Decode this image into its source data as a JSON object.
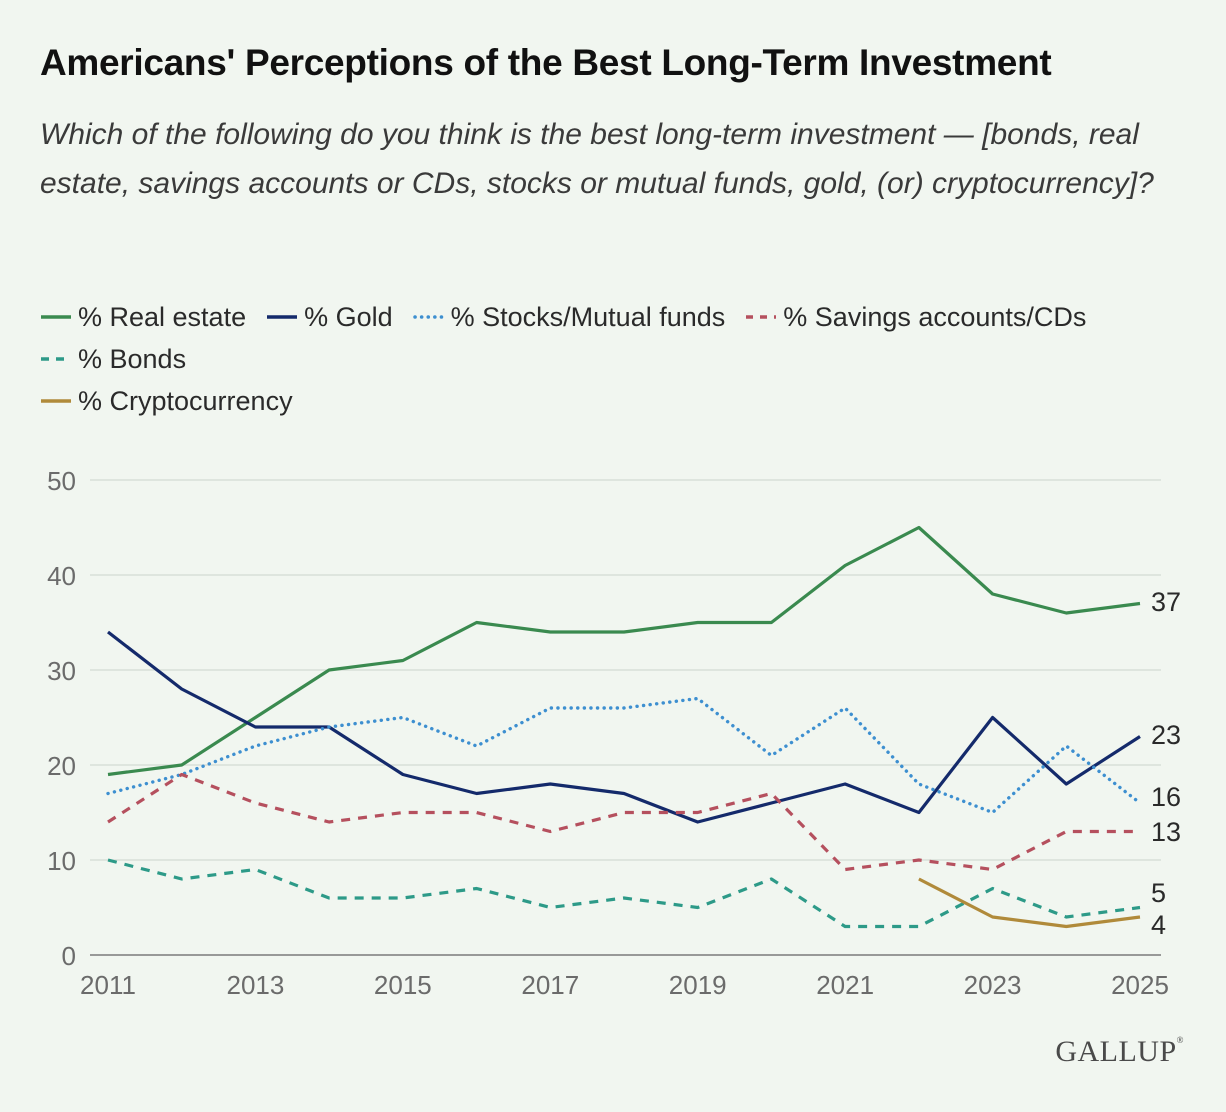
{
  "title": "Americans' Perceptions of the Best Long-Term Investment",
  "subtitle": "Which of the following do you think is the best long-term investment — [bonds, real estate, savings accounts or CDs, stocks or mutual funds, gold, (or) cryptocurrency]?",
  "brand": "GALLUP",
  "chart_data": {
    "type": "line",
    "title": "Americans' Perceptions of the Best Long-Term Investment",
    "xlabel": "",
    "ylabel": "",
    "x": [
      2011,
      2012,
      2013,
      2014,
      2015,
      2016,
      2017,
      2018,
      2019,
      2020,
      2021,
      2022,
      2023,
      2024,
      2025
    ],
    "x_ticks": [
      "2011",
      "2013",
      "2015",
      "2017",
      "2019",
      "2021",
      "2023",
      "2025"
    ],
    "y_ticks": [
      "0",
      "10",
      "20",
      "30",
      "40",
      "50"
    ],
    "ylim": [
      0,
      50
    ],
    "grid": true,
    "legend_position": "top",
    "series": [
      {
        "name": "% Real estate",
        "color": "#3a8a4f",
        "style": "solid",
        "values": [
          19,
          20,
          25,
          30,
          31,
          35,
          34,
          34,
          35,
          35,
          41,
          45,
          38,
          36,
          37
        ],
        "end_label": "37"
      },
      {
        "name": "% Gold",
        "color": "#142a6b",
        "style": "solid",
        "values": [
          34,
          28,
          24,
          24,
          19,
          17,
          18,
          17,
          14,
          16,
          18,
          15,
          25,
          18,
          23
        ],
        "end_label": "23"
      },
      {
        "name": "% Stocks/Mutual funds",
        "color": "#3d8fd0",
        "style": "dotted",
        "values": [
          17,
          19,
          22,
          24,
          25,
          22,
          26,
          26,
          27,
          21,
          26,
          18,
          15,
          22,
          16
        ],
        "end_label": "16"
      },
      {
        "name": "% Savings accounts/CDs",
        "color": "#b5505e",
        "style": "dashed",
        "values": [
          14,
          19,
          16,
          14,
          15,
          15,
          13,
          15,
          15,
          17,
          9,
          10,
          9,
          13,
          13
        ],
        "end_label": "13"
      },
      {
        "name": "% Bonds",
        "color": "#2d9a88",
        "style": "dashed",
        "values": [
          10,
          8,
          9,
          6,
          6,
          7,
          5,
          6,
          5,
          8,
          3,
          3,
          7,
          4,
          5
        ],
        "end_label": "5"
      },
      {
        "name": "% Cryptocurrency",
        "color": "#b08a3a",
        "style": "solid",
        "values": [
          null,
          null,
          null,
          null,
          null,
          null,
          null,
          null,
          null,
          null,
          null,
          8,
          4,
          3,
          4
        ],
        "end_label": "4"
      }
    ]
  }
}
